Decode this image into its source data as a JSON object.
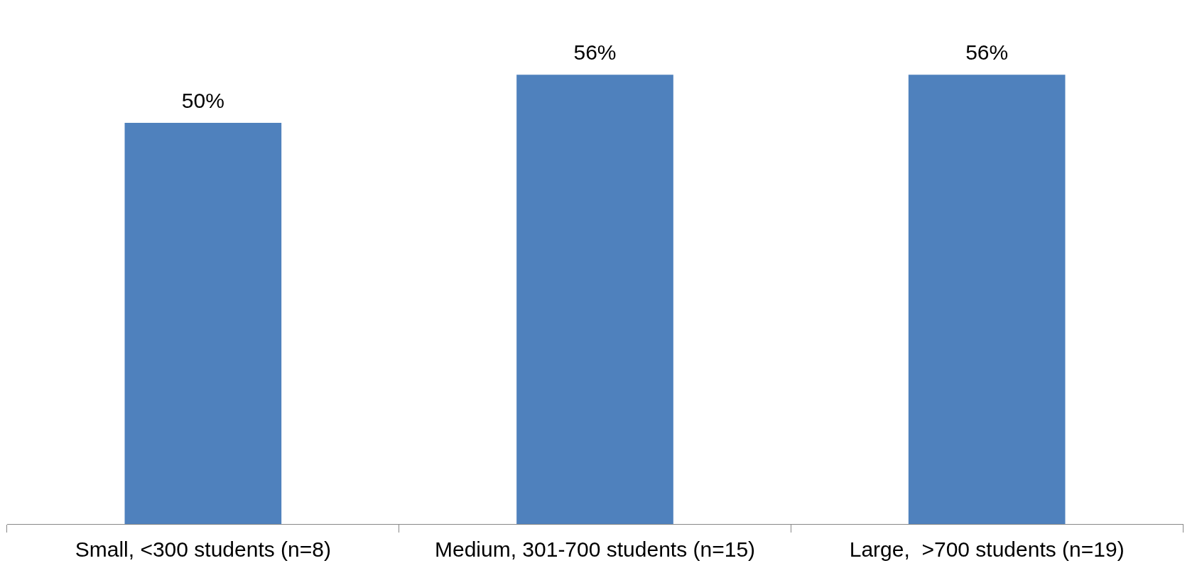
{
  "chart_data": {
    "type": "bar",
    "categories": [
      "Small, <300 students (n=8)",
      "Medium, 301-700 students (n=15)",
      "Large,  >700 students (n=19)"
    ],
    "values": [
      50,
      56,
      56
    ],
    "color": "#4f81bd",
    "data_labels": true,
    "value_labels": [
      "50%",
      "56%",
      "56%"
    ]
  }
}
